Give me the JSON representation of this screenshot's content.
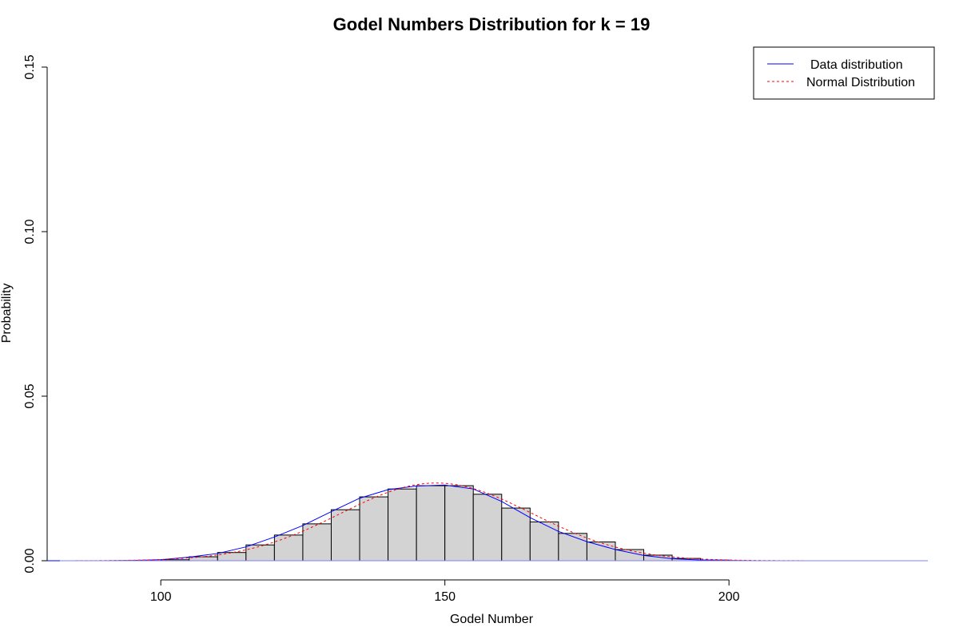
{
  "chart_data": {
    "type": "bar",
    "title": "Godel Numbers Distribution for k =  19",
    "xlabel": "Godel Number",
    "ylabel": "Probability",
    "xlim": [
      80,
      235
    ],
    "ylim": [
      0,
      0.15
    ],
    "x_ticks": [
      100,
      150,
      200
    ],
    "y_ticks": [
      0.0,
      0.05,
      0.1,
      0.15
    ],
    "x_tick_labels": [
      "100",
      "150",
      "200"
    ],
    "y_tick_labels": [
      "0.00",
      "0.05",
      "0.10",
      "0.15"
    ],
    "bin_width": 5,
    "bins": [
      {
        "x0": 100,
        "value": 0.0003
      },
      {
        "x0": 105,
        "value": 0.0012
      },
      {
        "x0": 110,
        "value": 0.0025
      },
      {
        "x0": 115,
        "value": 0.0048
      },
      {
        "x0": 120,
        "value": 0.0078
      },
      {
        "x0": 125,
        "value": 0.0112
      },
      {
        "x0": 130,
        "value": 0.0155
      },
      {
        "x0": 135,
        "value": 0.0194
      },
      {
        "x0": 140,
        "value": 0.0218
      },
      {
        "x0": 145,
        "value": 0.0228
      },
      {
        "x0": 150,
        "value": 0.0228
      },
      {
        "x0": 155,
        "value": 0.0202
      },
      {
        "x0": 160,
        "value": 0.016
      },
      {
        "x0": 165,
        "value": 0.0118
      },
      {
        "x0": 170,
        "value": 0.0083
      },
      {
        "x0": 175,
        "value": 0.0057
      },
      {
        "x0": 180,
        "value": 0.0034
      },
      {
        "x0": 185,
        "value": 0.0017
      },
      {
        "x0": 190,
        "value": 0.0007
      },
      {
        "x0": 195,
        "value": 0.0002
      }
    ],
    "density_curve": {
      "name": "Data distribution",
      "color": "#0000ff",
      "x": [
        80,
        85,
        90,
        95,
        100,
        105,
        110,
        115,
        120,
        125,
        130,
        135,
        140,
        145,
        150,
        155,
        160,
        165,
        170,
        175,
        180,
        185,
        190,
        195,
        200,
        205,
        210,
        215,
        220,
        225,
        230,
        235
      ],
      "y": [
        0,
        0,
        0,
        0.0001,
        0.0003,
        0.0011,
        0.0022,
        0.0042,
        0.0072,
        0.0107,
        0.0149,
        0.019,
        0.0216,
        0.0227,
        0.023,
        0.0218,
        0.018,
        0.0131,
        0.0089,
        0.0058,
        0.0034,
        0.0016,
        0.0006,
        0.0002,
        0.0001,
        0,
        0,
        0,
        0,
        0,
        0,
        0
      ]
    },
    "normal_curve": {
      "name": "Normal Distribution",
      "color": "#ff0000",
      "mean": 148.5,
      "sd": 16.9,
      "x_range": [
        85,
        230
      ]
    },
    "legend": {
      "position": "top-right",
      "entries": [
        {
          "label": "Data distribution",
          "color": "#0000ff",
          "style": "solid"
        },
        {
          "label": "Normal Distribution",
          "color": "#ff0000",
          "style": "dashed"
        }
      ]
    },
    "bar_fill": "#d3d3d3",
    "bar_stroke": "#000000",
    "grid": false
  }
}
